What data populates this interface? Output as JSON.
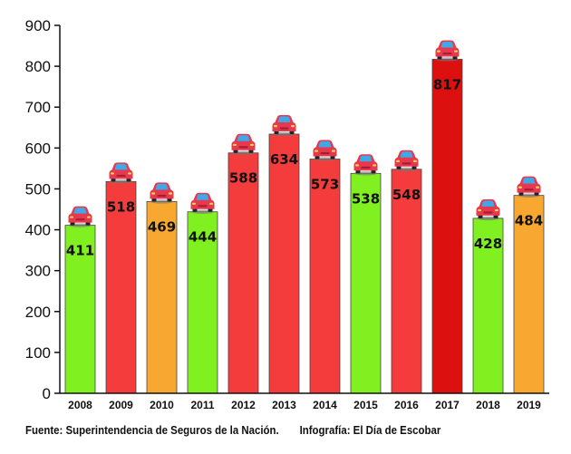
{
  "chart_data": {
    "type": "bar",
    "categories": [
      "2008",
      "2009",
      "2010",
      "2011",
      "2012",
      "2013",
      "2014",
      "2015",
      "2016",
      "2017",
      "2018",
      "2019"
    ],
    "values": [
      411,
      518,
      469,
      444,
      588,
      634,
      573,
      538,
      548,
      817,
      428,
      484
    ],
    "bar_colors": [
      "#80f020",
      "#f43c3c",
      "#f8a830",
      "#80f020",
      "#f43c3c",
      "#f43c3c",
      "#f43c3c",
      "#80f020",
      "#f43c3c",
      "#dd1010",
      "#80f020",
      "#f8a830"
    ],
    "ylim": [
      0,
      900
    ],
    "yticks": [
      0,
      100,
      200,
      300,
      400,
      500,
      600,
      700,
      800,
      900
    ],
    "grid": false,
    "title": "",
    "xlabel": "",
    "ylabel": "",
    "bar_top_icon": "car-icon"
  },
  "footer": {
    "source": "Fuente: Superintendencia de Seguros de la Nación.",
    "credit": "Infografía: El Día de Escobar"
  }
}
